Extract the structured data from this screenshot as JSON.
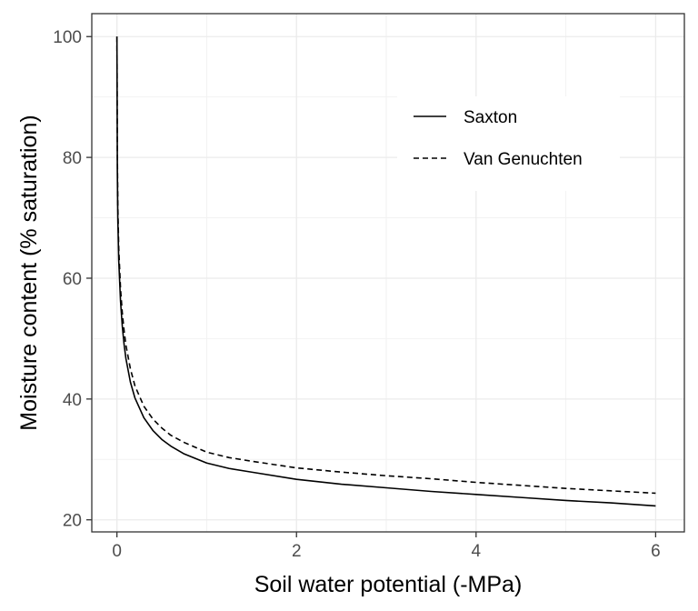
{
  "chart_data": {
    "type": "line",
    "title": "",
    "xlabel": "Soil water potential (-MPa)",
    "ylabel": "Moisture content (% saturation)",
    "xlim": [
      -0.28,
      6.32
    ],
    "ylim": [
      18.0,
      103.8
    ],
    "x_ticks": [
      0,
      2,
      4,
      6
    ],
    "y_ticks": [
      20,
      40,
      60,
      80,
      100
    ],
    "grid": true,
    "legend_position": "top-right",
    "series": [
      {
        "name": "Saxton",
        "line_style": "solid",
        "color": "#000000",
        "x": [
          0,
          0.005,
          0.01,
          0.02,
          0.04,
          0.06,
          0.08,
          0.1,
          0.15,
          0.2,
          0.3,
          0.4,
          0.5,
          0.6,
          0.75,
          1.0,
          1.25,
          1.5,
          2.0,
          2.5,
          3.0,
          3.5,
          4.0,
          4.5,
          5.0,
          5.5,
          6.0
        ],
        "y": [
          100,
          77.5,
          70.0,
          63.0,
          56.2,
          52.0,
          49.0,
          46.7,
          42.8,
          40.2,
          36.9,
          34.8,
          33.3,
          32.2,
          30.9,
          29.4,
          28.5,
          27.9,
          26.7,
          25.9,
          25.3,
          24.7,
          24.2,
          23.7,
          23.2,
          22.8,
          22.3
        ]
      },
      {
        "name": "Van Genuchten",
        "line_style": "dashed",
        "color": "#000000",
        "x": [
          0,
          0.005,
          0.01,
          0.02,
          0.04,
          0.06,
          0.08,
          0.1,
          0.15,
          0.2,
          0.3,
          0.4,
          0.5,
          0.6,
          0.75,
          1.0,
          1.25,
          1.5,
          2.0,
          2.5,
          3.0,
          3.5,
          4.0,
          4.5,
          5.0,
          5.5,
          6.0
        ],
        "y": [
          100,
          80.0,
          72.0,
          65.0,
          58.3,
          54.2,
          51.3,
          48.9,
          45.0,
          42.2,
          38.8,
          36.7,
          35.2,
          34.0,
          32.8,
          31.2,
          30.3,
          29.7,
          28.6,
          27.9,
          27.3,
          26.8,
          26.2,
          25.7,
          25.2,
          24.8,
          24.4
        ]
      }
    ]
  }
}
